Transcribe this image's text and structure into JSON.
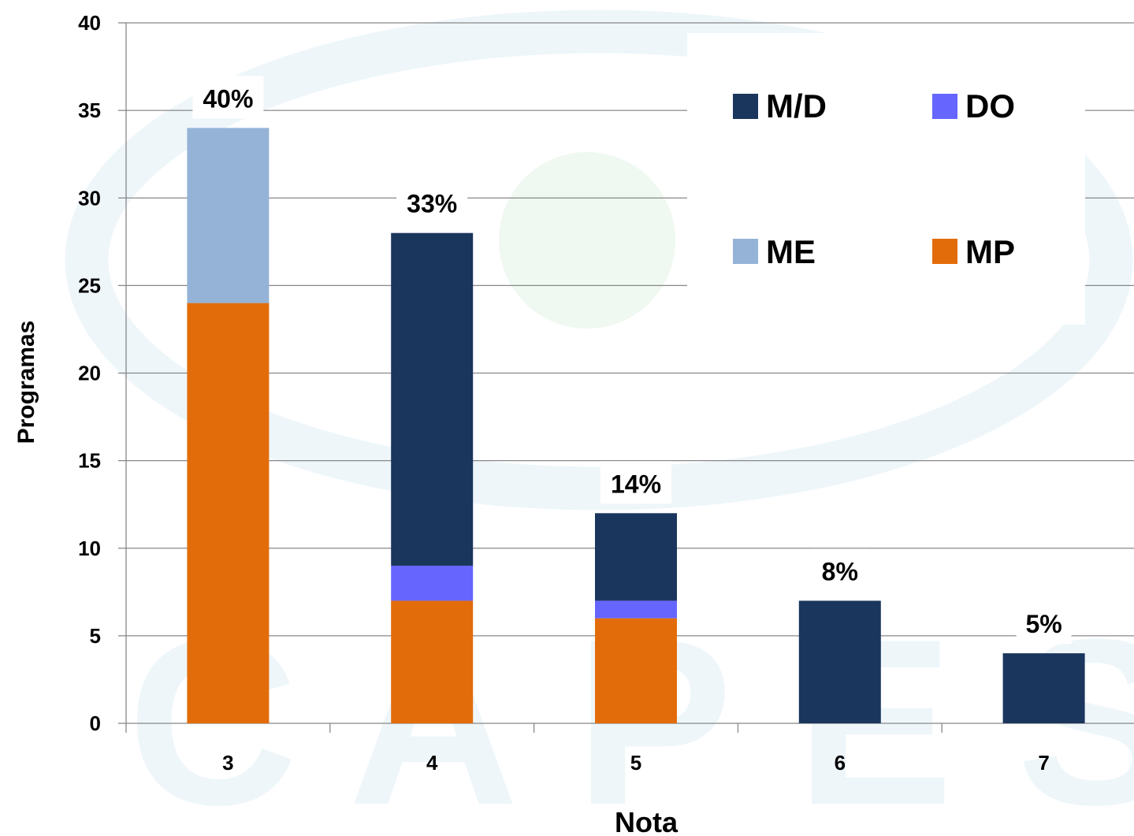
{
  "chart_data": {
    "type": "bar",
    "stacked": true,
    "categories": [
      "3",
      "4",
      "5",
      "6",
      "7"
    ],
    "series": [
      {
        "name": "MP",
        "color": "#e36c0a",
        "values": [
          24,
          7,
          6,
          0,
          0
        ]
      },
      {
        "name": "DO",
        "color": "#6666ff",
        "values": [
          0,
          2,
          1,
          0,
          0
        ]
      },
      {
        "name": "M/D",
        "color": "#1b365d",
        "values": [
          0,
          19,
          5,
          7,
          4
        ]
      },
      {
        "name": "ME",
        "color": "#95b3d7",
        "values": [
          10,
          0,
          0,
          0,
          0
        ]
      }
    ],
    "percent_labels": [
      "40%",
      "33%",
      "14%",
      "8%",
      "5%"
    ],
    "xlabel": "Nota",
    "ylabel": "Programas",
    "ylim": [
      0,
      40
    ],
    "yticks": [
      0,
      5,
      10,
      15,
      20,
      25,
      30,
      35,
      40
    ],
    "grid": true,
    "legend": {
      "placement": "top-right",
      "order": [
        "M/D",
        "DO",
        "ME",
        "MP"
      ]
    },
    "watermark": "CAPES"
  }
}
